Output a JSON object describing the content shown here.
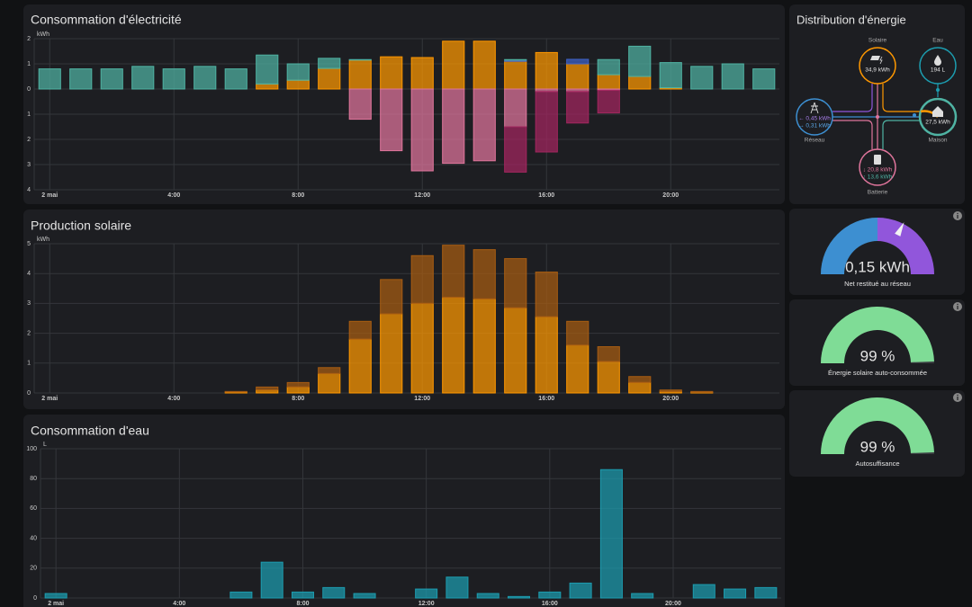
{
  "chart_data": [
    {
      "type": "bar",
      "title": "Consommation d'électricité",
      "y_label": "kWh",
      "stacked": true,
      "categories": [
        "2 mai",
        null,
        null,
        null,
        "4:00",
        null,
        null,
        null,
        "8:00",
        null,
        null,
        null,
        "12:00",
        null,
        null,
        null,
        "16:00",
        null,
        null,
        null,
        "20:00",
        null,
        null,
        null
      ],
      "series": [
        {
          "color": "#ff9800",
          "values": [
            0,
            0,
            0,
            0,
            0,
            0,
            0,
            0.2,
            0.35,
            0.82,
            1.15,
            1.28,
            1.25,
            1.9,
            1.9,
            1.1,
            1.45,
            1.0,
            0.57,
            0.5,
            0.05,
            0,
            0,
            0
          ]
        },
        {
          "color": "#3f63c8",
          "values": [
            0,
            0,
            0,
            0,
            0,
            0,
            0,
            0,
            0,
            0,
            0,
            0,
            0,
            0,
            0,
            0.05,
            0,
            0.18,
            0,
            0,
            0,
            0,
            0,
            0
          ]
        },
        {
          "color": "#4fb3a3",
          "values": [
            0.8,
            0.8,
            0.8,
            0.9,
            0.8,
            0.9,
            0.8,
            1.15,
            0.65,
            0.4,
            0.02,
            0,
            0,
            0,
            0,
            0.02,
            0,
            0,
            0.6,
            1.2,
            1.0,
            0.9,
            1.0,
            0.8
          ]
        },
        {
          "color": "#e0759c",
          "values": [
            0,
            0,
            0,
            0,
            0,
            0,
            0,
            0,
            0,
            0,
            -1.2,
            -2.45,
            -3.25,
            -2.95,
            -2.85,
            -1.5,
            -0.1,
            -0.1,
            -0.05,
            0,
            0,
            0,
            0,
            0
          ]
        },
        {
          "color": "#a3265f",
          "values": [
            0,
            0,
            0,
            0,
            0,
            0,
            0,
            0,
            0,
            0,
            0,
            0,
            0,
            0,
            0,
            -1.8,
            -2.4,
            -1.25,
            -0.9,
            0,
            0,
            0,
            0,
            0
          ]
        }
      ],
      "ylim": [
        -4,
        2
      ],
      "yticks": [
        2,
        1,
        0,
        {
          "value": -1,
          "label": "1"
        },
        {
          "value": -2,
          "label": "2"
        },
        {
          "value": -3,
          "label": "3"
        },
        {
          "value": -4,
          "label": "4"
        }
      ],
      "grid": true
    },
    {
      "type": "bar",
      "title": "Production solaire",
      "y_label": "kWh",
      "stacked": true,
      "categories": [
        "2 mai",
        null,
        null,
        null,
        "4:00",
        null,
        null,
        null,
        "8:00",
        null,
        null,
        null,
        "12:00",
        null,
        null,
        null,
        "16:00",
        null,
        null,
        null,
        "20:00",
        null,
        null,
        null
      ],
      "series": [
        {
          "color": "#ff9800",
          "values": [
            0,
            0,
            0,
            0,
            0,
            0,
            0.03,
            0.1,
            0.2,
            0.65,
            1.8,
            2.65,
            3.0,
            3.2,
            3.15,
            2.85,
            2.55,
            1.6,
            1.05,
            0.35,
            0.05,
            0.02,
            0,
            0
          ]
        },
        {
          "color": "#a85d12",
          "values": [
            0,
            0,
            0,
            0,
            0,
            0,
            0.02,
            0.1,
            0.15,
            0.2,
            0.6,
            1.15,
            1.6,
            1.75,
            1.65,
            1.65,
            1.5,
            0.8,
            0.5,
            0.2,
            0.05,
            0.03,
            0,
            0
          ]
        }
      ],
      "ylim": [
        0,
        5
      ],
      "yticks": [
        0,
        1,
        2,
        3,
        4,
        5
      ],
      "grid": true
    },
    {
      "type": "bar",
      "title": "Consommation d'eau",
      "y_label": "L",
      "categories": [
        "2 mai",
        null,
        null,
        null,
        "4:00",
        null,
        null,
        null,
        "8:00",
        null,
        null,
        null,
        "12:00",
        null,
        null,
        null,
        "16:00",
        null,
        null,
        null,
        "20:00",
        null,
        null,
        null
      ],
      "values": [
        3,
        0,
        0,
        0,
        0,
        0,
        4,
        24,
        4,
        7,
        3,
        0,
        6,
        14,
        3,
        1,
        4,
        10,
        86,
        3,
        0,
        9,
        6,
        7
      ],
      "color": "#1c9db0",
      "ylim": [
        0,
        100
      ],
      "yticks": [
        0,
        20,
        40,
        60,
        80,
        100
      ],
      "grid": true
    },
    {
      "type": "gauge",
      "title": "Net restitué au réseau",
      "value": 0.15,
      "value_label": "0,15 kWh",
      "ylim": [
        -0.5,
        0.5
      ],
      "colors": [
        "#3d8fd1",
        "#9156db"
      ]
    },
    {
      "type": "gauge",
      "title": "Énergie solaire auto-consommée",
      "value": 99,
      "value_label": "99 %",
      "ylim": [
        0,
        100
      ],
      "color": "#7fdc96"
    },
    {
      "type": "gauge",
      "title": "Autosuffisance",
      "value": 99,
      "value_label": "99 %",
      "ylim": [
        0,
        100
      ],
      "color": "#7fdc96"
    }
  ],
  "energy_distribution": {
    "title": "Distribution d'énergie",
    "solar": {
      "label": "Solaire",
      "value": "34,9 kWh"
    },
    "water": {
      "label": "Eau",
      "value": "194 L"
    },
    "grid": {
      "label": "Réseau",
      "out": "← 0,45 kWh",
      "in": "→ 0,31 kWh"
    },
    "home": {
      "label": "Maison",
      "value": "27,5 kWh"
    },
    "battery": {
      "label": "Batterie",
      "in": "↓ 20,8 kWh",
      "out": "↑ 13,6 kWh"
    }
  }
}
